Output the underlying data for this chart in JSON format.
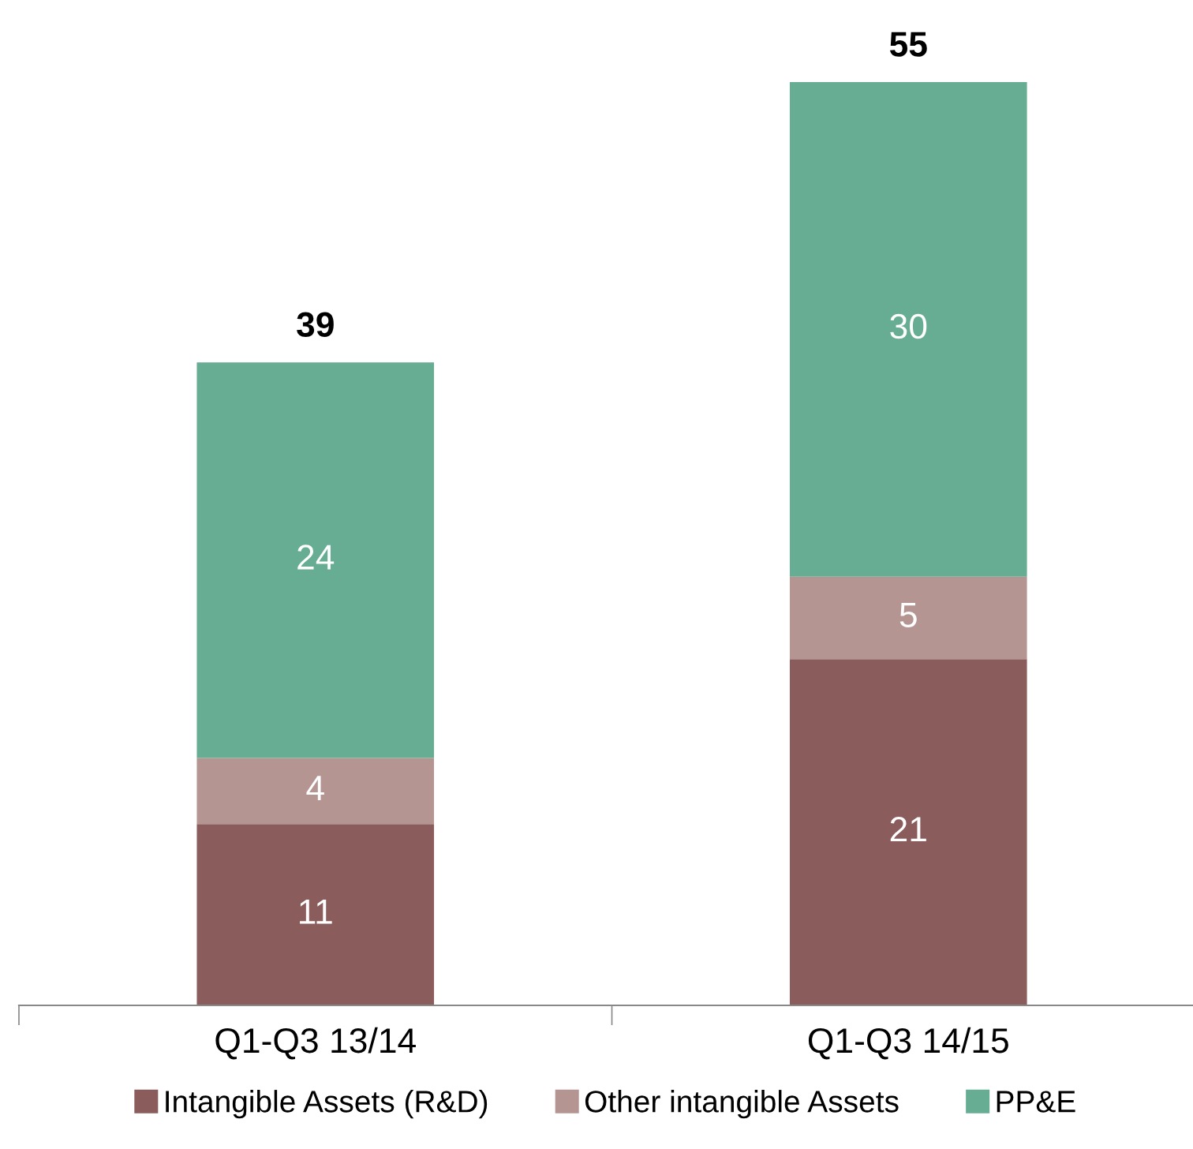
{
  "chart_data": {
    "type": "bar",
    "stacked": true,
    "categories": [
      "Q1-Q3 13/14",
      "Q1-Q3 14/15"
    ],
    "series": [
      {
        "name": "Intangible Assets (R&D)",
        "color": "#8b5c5c",
        "values": [
          11,
          21
        ]
      },
      {
        "name": "Other intangible Assets",
        "color": "#b59592",
        "values": [
          4,
          5
        ]
      },
      {
        "name": "PP&E",
        "color": "#66ad93",
        "values": [
          24,
          30
        ]
      }
    ],
    "data_labels": true,
    "totals": [
      "39",
      "55"
    ],
    "legend": "bottom",
    "grid": false
  }
}
